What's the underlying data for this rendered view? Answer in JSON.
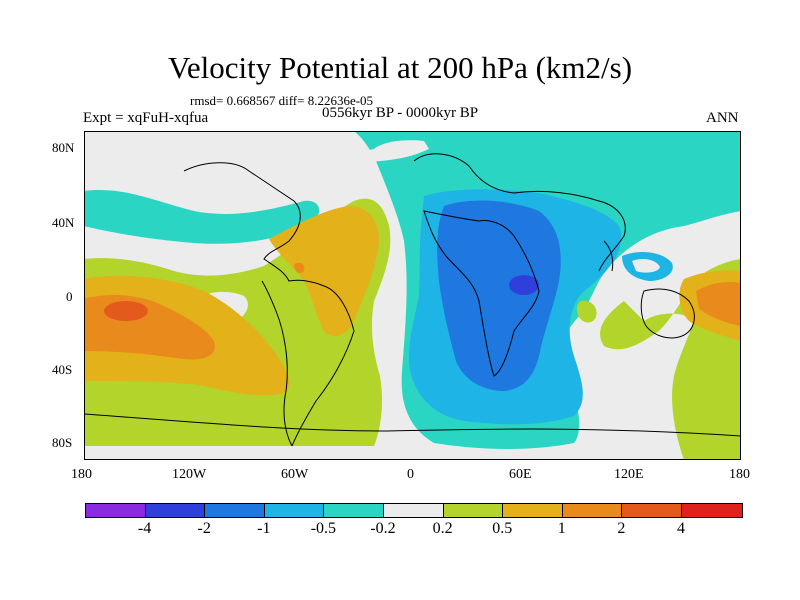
{
  "title": "Velocity Potential at 200 hPa (km2/s)",
  "stats": "rmsd= 0.668567 diff= 8.22636e-05",
  "experiment": "Expt = xqFuH-xqfua",
  "period": "0556kyr BP - 0000kyr BP",
  "season": "ANN",
  "lat_labels": [
    "80N",
    "40N",
    "0",
    "40S",
    "80S"
  ],
  "lon_labels": [
    "180",
    "120W",
    "60W",
    "0",
    "60E",
    "120E",
    "180"
  ],
  "colorbar": {
    "colors": [
      "#8a2be2",
      "#2f3fdc",
      "#1e78e0",
      "#1eb4e6",
      "#2ad6c3",
      "#ececec",
      "#b3d42a",
      "#e3b11a",
      "#e88b1c",
      "#e35a1c",
      "#e0221e"
    ],
    "labels": [
      "-4",
      "-2",
      "-1",
      "-0.5",
      "-0.2",
      "0.2",
      "0.5",
      "1",
      "2",
      "4"
    ]
  }
}
